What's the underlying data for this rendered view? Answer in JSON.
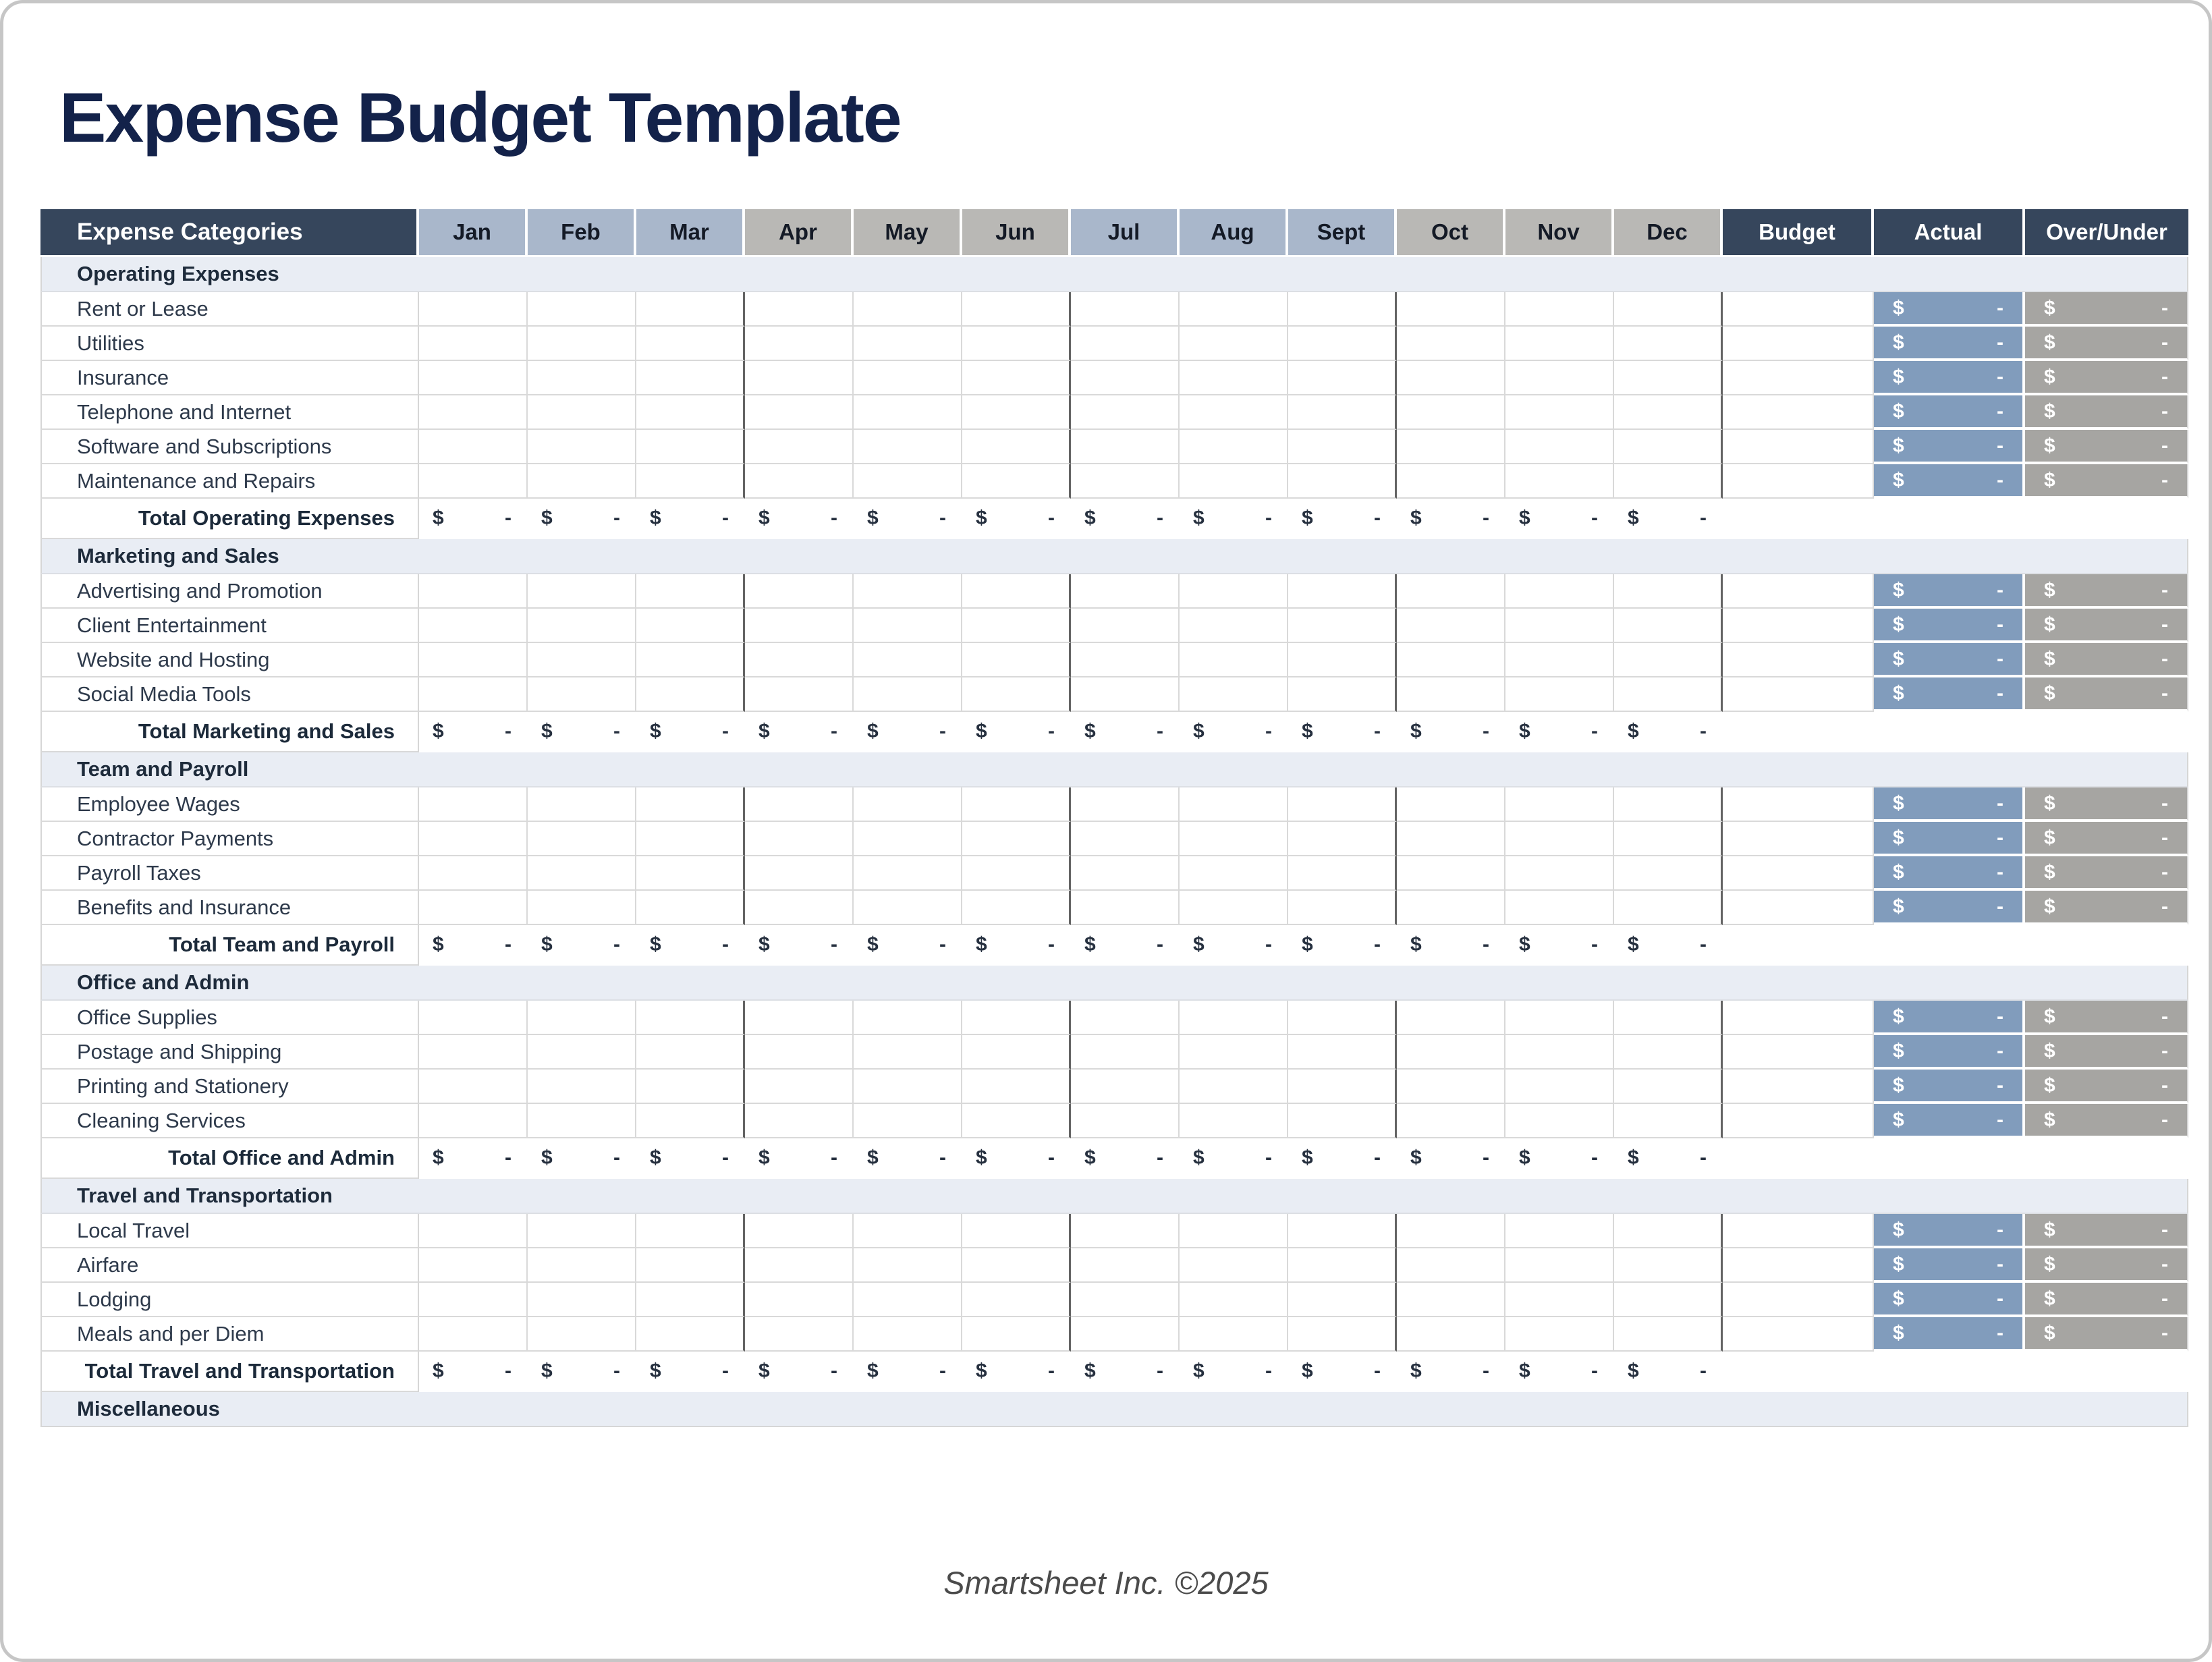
{
  "page": {
    "title": "Expense Budget Template",
    "footer": "Smartsheet Inc. ©2025"
  },
  "table": {
    "header": {
      "category_label": "Expense Categories",
      "months": [
        "Jan",
        "Feb",
        "Mar",
        "Apr",
        "May",
        "Jun",
        "Jul",
        "Aug",
        "Sept",
        "Oct",
        "Nov",
        "Dec"
      ],
      "summary": [
        "Budget",
        "Actual",
        "Over/Under"
      ]
    },
    "currency": {
      "symbol": "$",
      "empty_value": "-"
    },
    "sections": [
      {
        "name": "Operating Expenses",
        "rows": [
          "Rent or Lease",
          "Utilities",
          "Insurance",
          "Telephone and Internet",
          "Software and Subscriptions",
          "Maintenance and Repairs"
        ],
        "total_label": "Total Operating Expenses"
      },
      {
        "name": "Marketing and Sales",
        "rows": [
          "Advertising and Promotion",
          "Client Entertainment",
          "Website and Hosting",
          "Social Media Tools"
        ],
        "total_label": "Total Marketing and Sales"
      },
      {
        "name": "Team and Payroll",
        "rows": [
          "Employee Wages",
          "Contractor Payments",
          "Payroll Taxes",
          "Benefits and Insurance"
        ],
        "total_label": "Total Team and Payroll"
      },
      {
        "name": "Office and Admin",
        "rows": [
          "Office Supplies",
          "Postage and Shipping",
          "Printing and Stationery",
          "Cleaning Services"
        ],
        "total_label": "Total Office and Admin"
      },
      {
        "name": "Travel and Transportation",
        "rows": [
          "Local Travel",
          "Airfare",
          "Lodging",
          "Meals and per Diem"
        ],
        "total_label": "Total Travel and Transportation"
      },
      {
        "name": "Miscellaneous",
        "rows": [],
        "total_label": null
      }
    ],
    "colors": {
      "header_dark": "#36465c",
      "header_month_blue": "#a9b7cb",
      "header_month_gray": "#b9b8b5",
      "section_band": "#e9edf4",
      "total_cell_blue": "#aebdcd",
      "total_cell_gray": "#bab8b3",
      "actual_cell_fill": "#819cbc",
      "over_under_cell_fill": "#a6a5a2",
      "title_text": "#13224a",
      "grid_line": "#d9d9d9",
      "quarter_line": "#646464"
    }
  }
}
